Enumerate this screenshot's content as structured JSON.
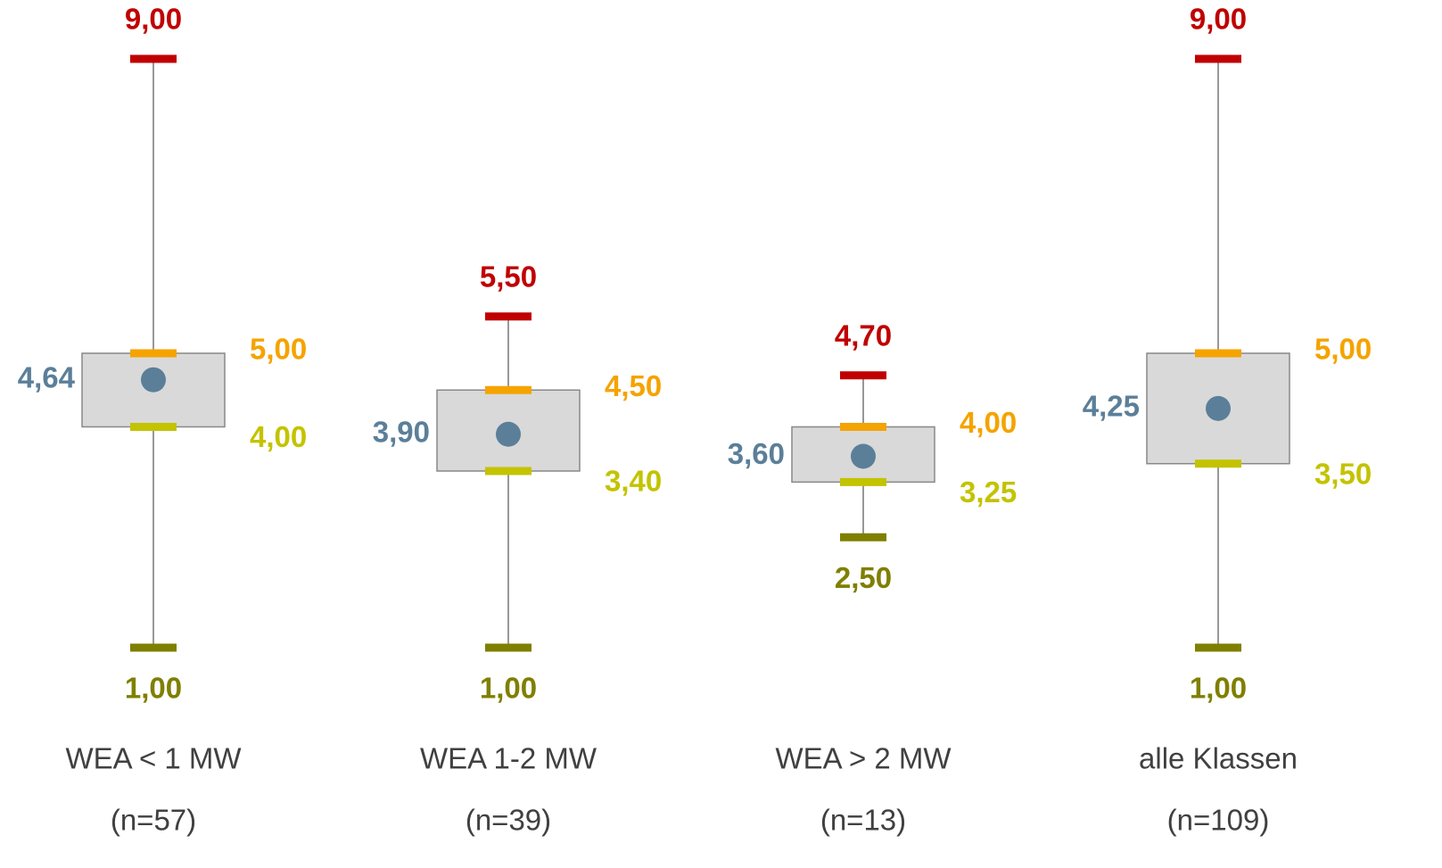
{
  "chart_data": {
    "type": "box",
    "categories": [
      "WEA < 1 MW",
      "WEA 1-2 MW",
      "WEA > 2 MW",
      "alle Klassen"
    ],
    "n_labels": [
      "(n=57)",
      "(n=39)",
      "(n=13)",
      "(n=109)"
    ],
    "colors": {
      "max": "#c00000",
      "q3": "#f5a300",
      "mean": "#5b7f99",
      "q1": "#c3c300",
      "min": "#7f7f00",
      "box": "#d9d9d9"
    },
    "boxes": [
      {
        "min": 1,
        "q1": 4,
        "mean": 4.64,
        "q3": 5,
        "max": 9,
        "value_labels": {
          "min": "1,00",
          "q1": "4,00",
          "mean": "4,64",
          "q3": "5,00",
          "max": "9,00"
        }
      },
      {
        "min": 1,
        "q1": 3.4,
        "mean": 3.9,
        "q3": 4.5,
        "max": 5.5,
        "value_labels": {
          "min": "1,00",
          "q1": "3,40",
          "mean": "3,90",
          "q3": "4,50",
          "max": "5,50"
        }
      },
      {
        "min": 2.5,
        "q1": 3.25,
        "mean": 3.6,
        "q3": 4,
        "max": 4.7,
        "value_labels": {
          "min": "2,50",
          "q1": "3,25",
          "mean": "3,60",
          "q3": "4,00",
          "max": "4,70"
        }
      },
      {
        "min": 1,
        "q1": 3.5,
        "mean": 4.25,
        "q3": 5,
        "max": 9,
        "value_labels": {
          "min": "1,00",
          "q1": "3,50",
          "mean": "4,25",
          "q3": "5,00",
          "max": "9,00"
        }
      }
    ]
  }
}
